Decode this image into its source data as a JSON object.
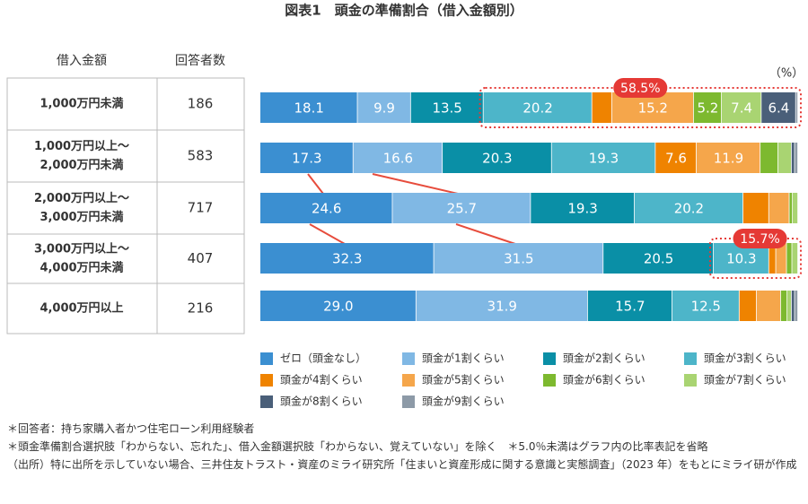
{
  "chart_data": {
    "type": "stacked-bar-horizontal",
    "title": "図表1　頭金の準備割合（借入金額別）",
    "unit_label": "（%）",
    "category_header": "借入金額",
    "respondents_header": "回答者数",
    "categories": [
      [
        "1,000万円未満"
      ],
      [
        "1,000万円以上～",
        "2,000万円未満"
      ],
      [
        "2,000万円以上～",
        "3,000万円未満"
      ],
      [
        "3,000万円以上～",
        "4,000万円未満"
      ],
      [
        "4,000万円以上"
      ]
    ],
    "respondents": [
      186,
      583,
      717,
      407,
      216
    ],
    "xlim": [
      0,
      100
    ],
    "series": [
      {
        "name": "ゼロ（頭金なし）",
        "color": "#3b8fd1",
        "values": [
          18.1,
          17.3,
          24.6,
          32.3,
          29.0
        ],
        "value_labels": [
          "18.1",
          "17.3",
          "24.6",
          "32.3",
          "29.0"
        ]
      },
      {
        "name": "頭金が1割くらい",
        "color": "#80b8e4",
        "values": [
          9.9,
          16.6,
          25.7,
          31.5,
          31.9
        ],
        "value_labels": [
          "9.9",
          "16.6",
          "25.7",
          "31.5",
          "31.9"
        ]
      },
      {
        "name": "頭金が2割くらい",
        "color": "#0a8fa6",
        "values": [
          13.5,
          20.3,
          19.3,
          20.5,
          15.7
        ],
        "value_labels": [
          "13.5",
          "20.3",
          "19.3",
          "20.5",
          "15.7"
        ]
      },
      {
        "name": "頭金が3割くらい",
        "color": "#4db5c9",
        "values": [
          20.2,
          19.3,
          20.2,
          10.3,
          12.5
        ],
        "value_labels": [
          "20.2",
          "19.3",
          "20.2",
          "10.3",
          "12.5"
        ]
      },
      {
        "name": "頭金が4割くらい",
        "color": "#ef8300",
        "values": [
          3.7,
          7.6,
          4.8,
          1.3,
          3.2
        ],
        "value_labels": [
          null,
          "7.6",
          null,
          null,
          null
        ]
      },
      {
        "name": "頭金が5割くらい",
        "color": "#f5a64b",
        "values": [
          15.2,
          11.9,
          3.8,
          2.0,
          4.5
        ],
        "value_labels": [
          "15.2",
          "11.9",
          null,
          null,
          null
        ]
      },
      {
        "name": "頭金が6割くらい",
        "color": "#7db92f",
        "values": [
          5.2,
          3.3,
          0.6,
          1.0,
          1.2
        ],
        "value_labels": [
          "5.2",
          null,
          null,
          null,
          null
        ]
      },
      {
        "name": "頭金が7割くらい",
        "color": "#a9d472",
        "values": [
          7.4,
          2.5,
          1.0,
          1.1,
          0.8
        ],
        "value_labels": [
          "7.4",
          null,
          null,
          null,
          null
        ]
      },
      {
        "name": "頭金が8割くらい",
        "color": "#4a5f79",
        "values": [
          6.4,
          0.6,
          0,
          0,
          0.6
        ],
        "value_labels": [
          "6.4",
          null,
          null,
          null,
          null
        ]
      },
      {
        "name": "頭金が9割くらい",
        "color": "#8d9aa7",
        "values": [
          0.4,
          0.6,
          0,
          0,
          0.6
        ],
        "value_labels": [
          null,
          null,
          null,
          null,
          null
        ]
      }
    ],
    "callouts": [
      {
        "value": 58.5,
        "label": "58.5%"
      },
      {
        "value": 15.7,
        "label": "15.7%"
      }
    ],
    "notes": [
      "＊回答者：持ち家購入者かつ住宅ローン利用経験者",
      "＊頭金準備割合選択肢「わからない、忘れた」、借入金額選択肢「わからない、覚えていない」を除く",
      "＊5.0％未満はグラフ内の比率表記を省略",
      "（出所）特に出所を示していない場合、三井住友トラスト・資産のミライ研究所「住まいと資産形成に関する意識と実態調査」（2023 年）をもとにミライ研が作成"
    ]
  }
}
